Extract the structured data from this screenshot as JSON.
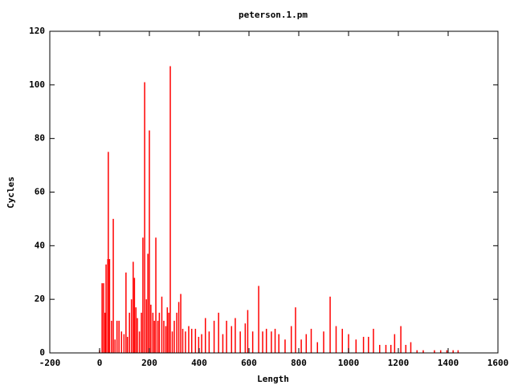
{
  "chart_data": {
    "type": "impulse",
    "title": "peterson.1.pm",
    "x_label": "Length",
    "y_label": "Cycles",
    "color": "#ff0000",
    "xlim": [
      -200,
      1600
    ],
    "ylim": [
      0,
      120
    ],
    "xticks": [
      -200,
      0,
      200,
      400,
      600,
      800,
      1000,
      1200,
      1400,
      1600
    ],
    "yticks": [
      0,
      20,
      40,
      60,
      80,
      100,
      120
    ],
    "x": [
      0,
      10,
      16,
      22,
      26,
      33,
      35,
      40,
      48,
      55,
      62,
      70,
      78,
      88,
      98,
      106,
      112,
      120,
      128,
      135,
      140,
      146,
      152,
      160,
      168,
      174,
      181,
      188,
      194,
      200,
      206,
      214,
      220,
      226,
      234,
      240,
      250,
      258,
      266,
      272,
      278,
      284,
      292,
      300,
      310,
      318,
      326,
      334,
      345,
      358,
      370,
      385,
      398,
      410,
      425,
      440,
      460,
      478,
      495,
      510,
      530,
      545,
      565,
      585,
      595,
      615,
      639,
      655,
      670,
      690,
      705,
      720,
      745,
      770,
      787,
      810,
      830,
      850,
      875,
      900,
      926,
      950,
      975,
      1000,
      1030,
      1060,
      1080,
      1100,
      1125,
      1150,
      1170,
      1185,
      1210,
      1230,
      1250,
      1275,
      1300,
      1345,
      1370,
      1395,
      1420,
      1440
    ],
    "values": [
      1,
      26,
      26,
      15,
      33,
      35,
      75,
      35,
      12,
      50,
      5,
      12,
      12,
      8,
      7,
      30,
      6,
      15,
      20,
      34,
      28,
      17,
      13,
      8,
      15,
      43,
      101,
      20,
      37,
      83,
      18,
      15,
      12,
      43,
      12,
      15,
      21,
      12,
      10,
      17,
      15,
      107,
      8,
      12,
      15,
      19,
      22,
      9,
      8,
      10,
      9,
      9,
      6,
      7,
      13,
      8,
      12,
      15,
      7,
      12,
      10,
      13,
      8,
      11,
      16,
      8,
      25,
      8,
      9,
      8,
      9,
      7,
      5,
      10,
      17,
      5,
      7,
      9,
      4,
      8,
      21,
      10,
      9,
      7,
      5,
      6,
      6,
      9,
      3,
      3,
      3,
      7,
      10,
      3,
      4,
      1,
      1,
      1,
      1,
      1,
      1,
      1
    ]
  }
}
